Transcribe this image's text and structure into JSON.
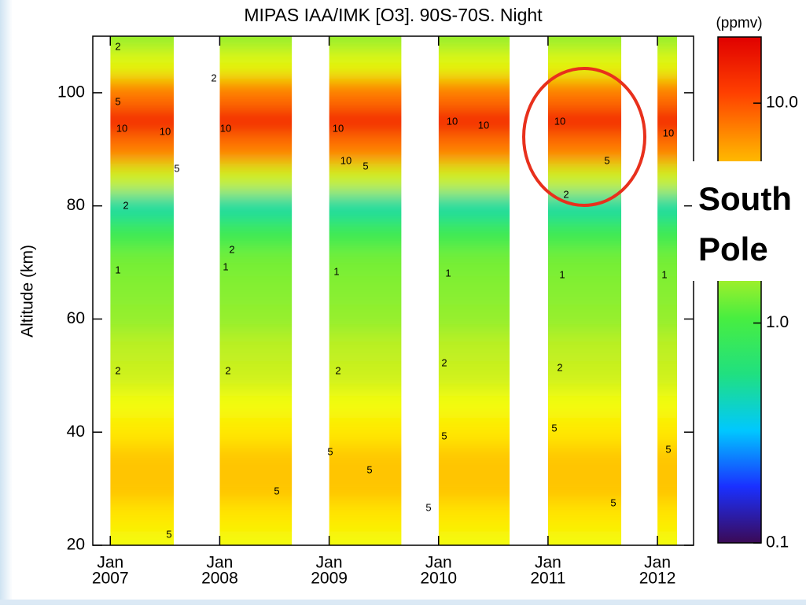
{
  "chart_data": {
    "type": "heatmap",
    "title": "MIPAS IAA/IMK [O3]. 90S-70S. Night",
    "y_label": "Altitude (km)",
    "colorbar_label": "(ppmv)",
    "annotation_lines": [
      "South",
      "Pole"
    ],
    "xlim": [
      2006.84,
      2012.33
    ],
    "xticks": [
      {
        "value": 2007,
        "label": "2007"
      },
      {
        "value": 2008,
        "label": "2008"
      },
      {
        "value": 2009,
        "label": "2009"
      },
      {
        "value": 2010,
        "label": "2010"
      },
      {
        "value": 2011,
        "label": "2011"
      },
      {
        "value": 2012,
        "label": "2012"
      }
    ],
    "x_month_labels": [
      "Jan",
      "Jan",
      "Jan",
      "Jan",
      "Jan",
      "Jan"
    ],
    "ylim": [
      20,
      110
    ],
    "yticks": [
      20,
      40,
      60,
      80,
      100
    ],
    "colorbar_lim": [
      0.1,
      20
    ],
    "colorbar_ticks": [
      0.1,
      {
        "value": 1,
        "label": "1.0"
      },
      {
        "value": 10,
        "label": "10.0"
      }
    ],
    "log_color_scale": true,
    "colormap": [
      "#3b0a55",
      "#1a30ff",
      "#00c8ff",
      "#20e080",
      "#48ee40",
      "#c8f020",
      "#ffff00",
      "#ffa500",
      "#ff4000",
      "#e00000"
    ],
    "contour_levels": [
      1,
      2,
      5,
      10
    ],
    "columns": [
      {
        "start": 2007.0,
        "end": 2007.58
      },
      {
        "start": 2008.0,
        "end": 2008.66
      },
      {
        "start": 2009.0,
        "end": 2009.66
      },
      {
        "start": 2010.0,
        "end": 2010.65
      },
      {
        "start": 2011.0,
        "end": 2011.67
      },
      {
        "start": 2012.0,
        "end": 2012.18
      }
    ],
    "profile": {
      "altitudes": [
        20,
        25,
        30,
        35,
        40,
        45,
        50,
        55,
        60,
        65,
        70,
        75,
        80,
        85,
        90,
        95,
        100,
        105,
        110
      ],
      "values": [
        3,
        4,
        5,
        5,
        4,
        3,
        2,
        1.8,
        1.5,
        1.4,
        1.3,
        0.9,
        0.5,
        2,
        8,
        14,
        8,
        2.5,
        1.5
      ]
    },
    "highlight_color": "#e8301c"
  }
}
